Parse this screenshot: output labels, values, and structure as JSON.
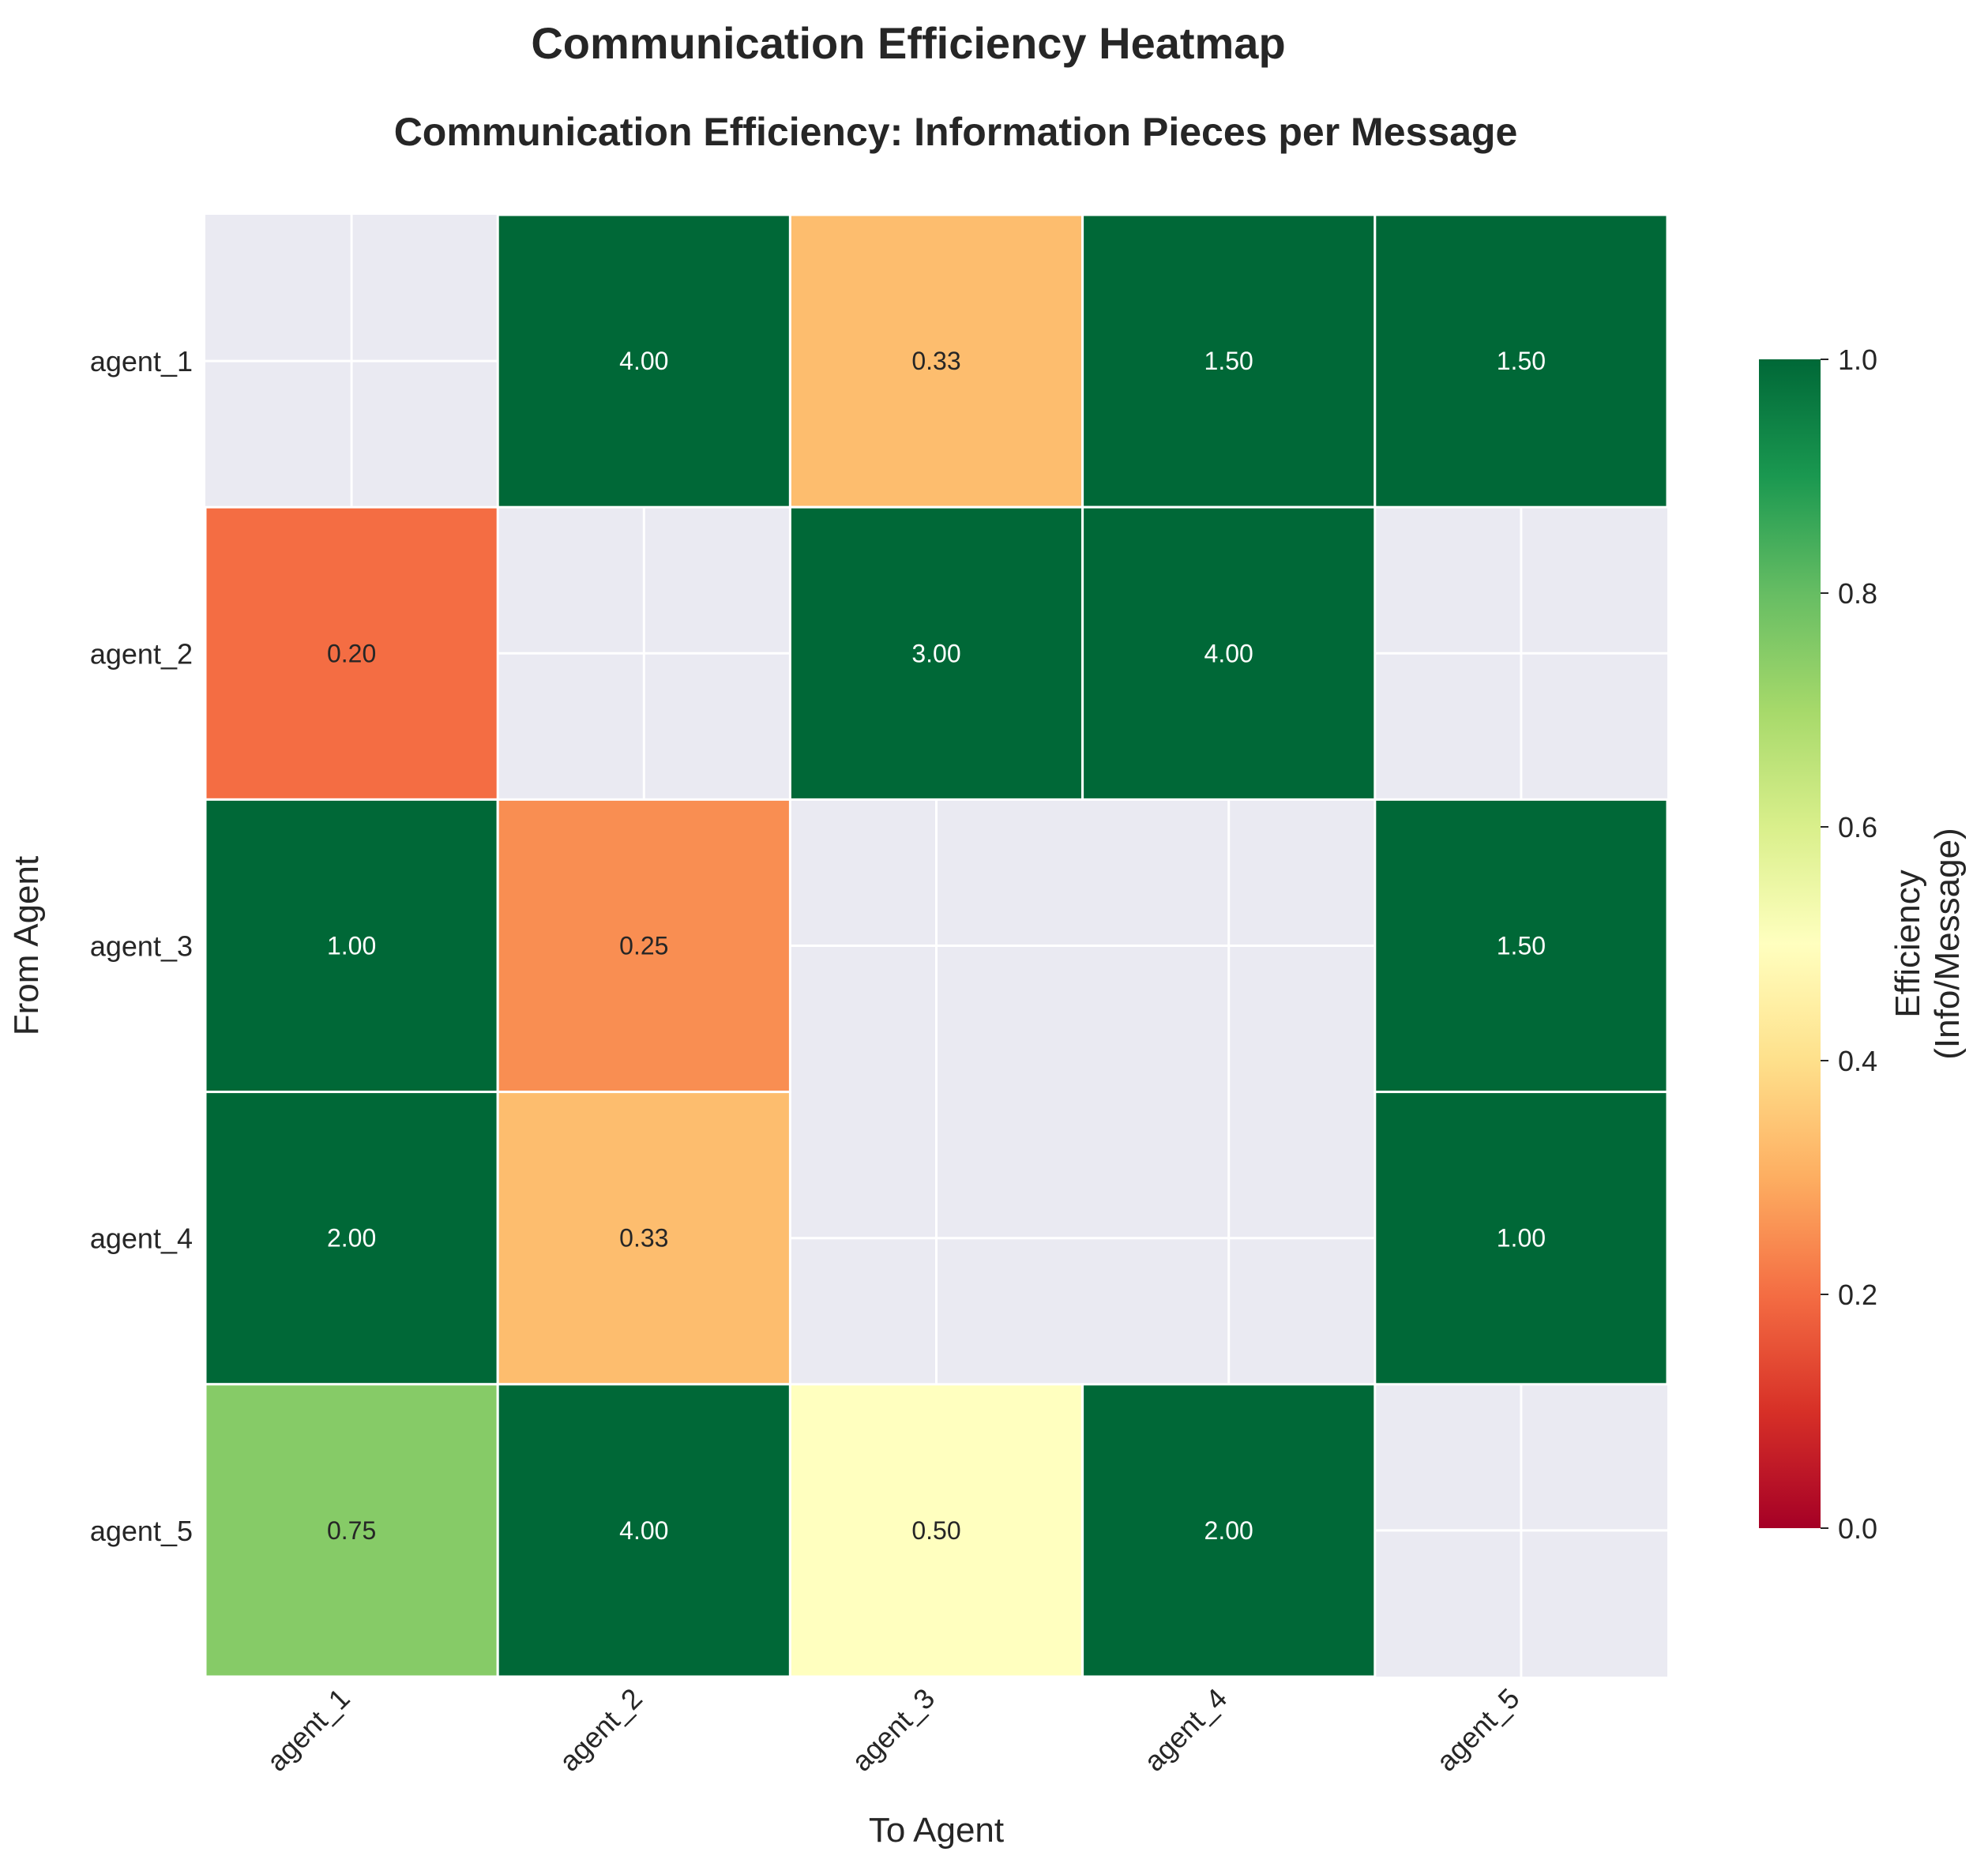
{
  "figure": {
    "suptitle": "Communication Efficiency Heatmap"
  },
  "chart_data": {
    "type": "heatmap",
    "title": "Communication Efficiency: Information Pieces per Message",
    "xlabel": "To Agent",
    "ylabel": "From Agent",
    "x_categories": [
      "agent_1",
      "agent_2",
      "agent_3",
      "agent_4",
      "agent_5"
    ],
    "y_categories": [
      "agent_1",
      "agent_2",
      "agent_3",
      "agent_4",
      "agent_5"
    ],
    "values": [
      [
        null,
        4.0,
        0.33,
        1.5,
        1.5
      ],
      [
        0.2,
        null,
        3.0,
        4.0,
        null
      ],
      [
        1.0,
        0.25,
        null,
        null,
        1.5
      ],
      [
        2.0,
        0.33,
        null,
        null,
        1.0
      ],
      [
        0.75,
        4.0,
        0.5,
        2.0,
        null
      ]
    ],
    "value_format": "0.00",
    "colormap": "RdYlGn",
    "vmin": 0.0,
    "vmax": 1.0,
    "missing_color": "#eaeaf2",
    "colorbar": {
      "label_lines": [
        "Efficiency",
        "(Info/Message)"
      ],
      "ticks": [
        "0.0",
        "0.2",
        "0.4",
        "0.6",
        "0.8",
        "1.0"
      ]
    },
    "grid": true
  }
}
